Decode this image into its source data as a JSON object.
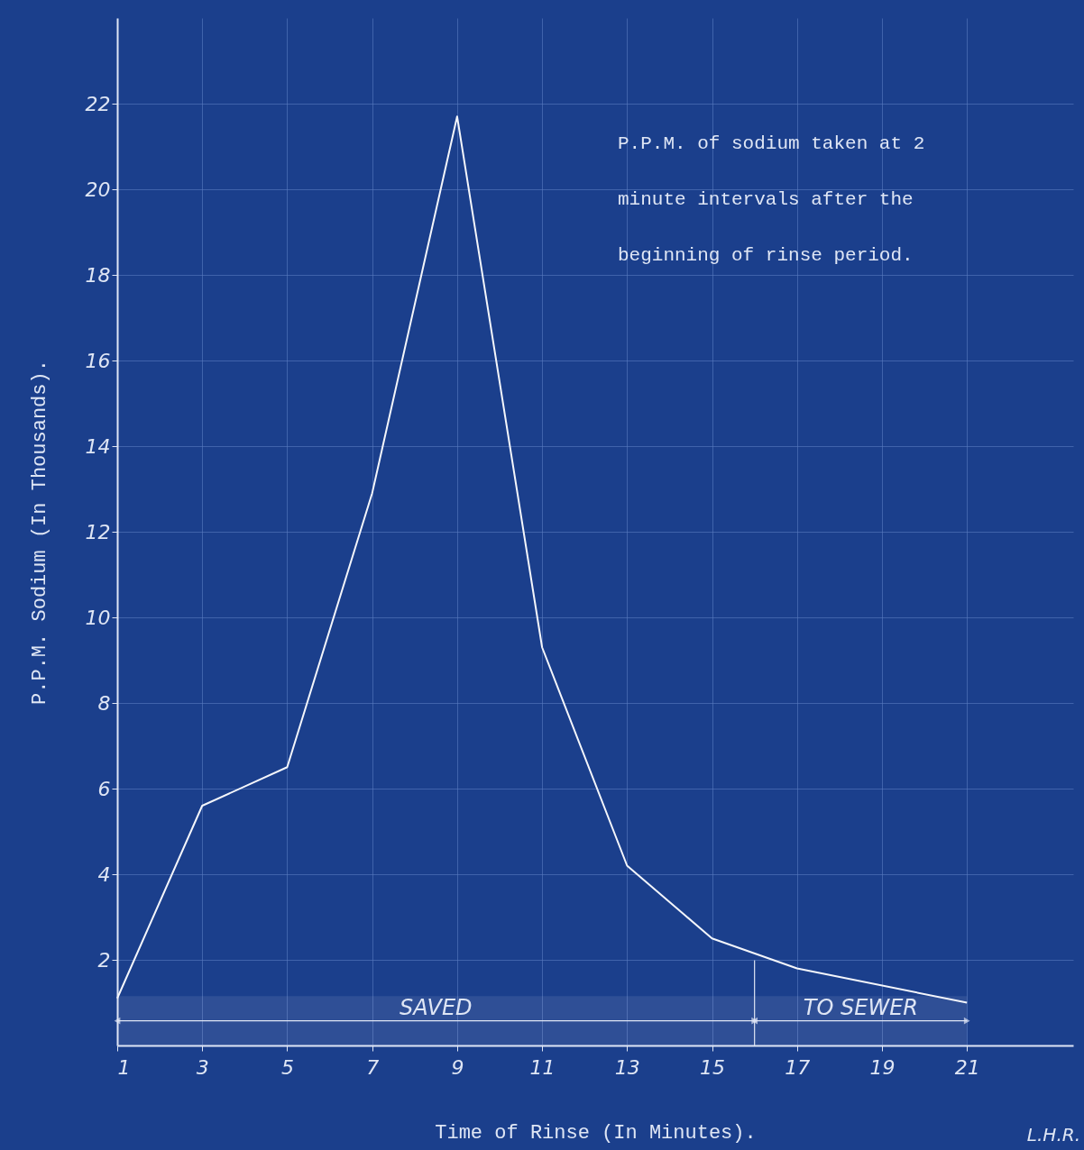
{
  "chart_data": {
    "type": "line",
    "xlabel": "Time of Rinse (In Minutes).",
    "ylabel": "P.P.M. Sodium (In Thousands).",
    "x": [
      1,
      3,
      5,
      7,
      9,
      11,
      13,
      15,
      17,
      21
    ],
    "series": [
      {
        "color": "#f4f6fb",
        "values": [
          1.1,
          5.6,
          6.5,
          12.9,
          21.7,
          9.3,
          4.2,
          2.5,
          1.8,
          1.0
        ]
      }
    ],
    "xlim": [
      1,
      23.5
    ],
    "xticks": [
      1,
      3,
      5,
      7,
      9,
      11,
      13,
      15,
      17,
      19,
      21
    ],
    "ylim": [
      0,
      24
    ],
    "yticks": [
      2,
      4,
      6,
      8,
      10,
      12,
      14,
      16,
      18,
      20,
      22
    ],
    "grid": true,
    "marker": "none",
    "line_style": "solid",
    "ref_lines": [
      {
        "axis": "x",
        "value": 16
      }
    ],
    "bands": [
      {
        "axis": "x",
        "from": 1,
        "to": 16,
        "label": "SAVED"
      },
      {
        "axis": "x",
        "from": 16,
        "to": 21,
        "label": "TO SEWER"
      }
    ],
    "annotations": [
      "P.P.M. of sodium taken at 2 minute intervals after the beginning of rinse period.",
      "L.H.R."
    ]
  }
}
